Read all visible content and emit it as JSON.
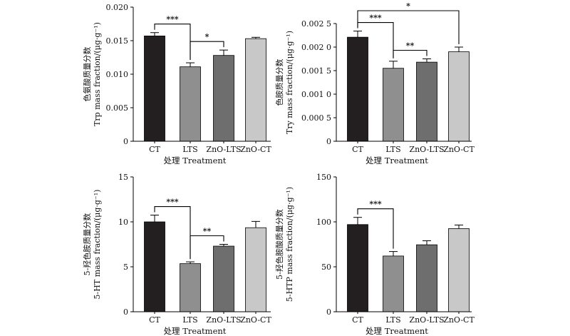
{
  "colors": {
    "CT": "#231f20",
    "LTS": "#8f8f8f",
    "ZnO-LTS": "#6e6e6e",
    "ZnO-CT": "#c8c8c8",
    "axis": "#000000"
  },
  "chart_data": [
    {
      "type": "bar",
      "categories": [
        "CT",
        "LTS",
        "ZnO-LTS",
        "ZnO-CT"
      ],
      "values": [
        0.0157,
        0.0111,
        0.0128,
        0.0153
      ],
      "errors": [
        0.0005,
        0.0006,
        0.0008,
        0.0002
      ],
      "ylim": [
        0,
        0.02
      ],
      "yticks": [
        "0",
        "0.005",
        "0.010",
        "0.015",
        "0.020"
      ],
      "ylabel_cn": "色氨酸质量分数",
      "ylabel_en": "Trp mass fraction/(μg·g⁻¹)",
      "xlabel": "处理 Treatment",
      "significance": [
        {
          "from": "CT",
          "to": "LTS",
          "label": "***"
        },
        {
          "from": "LTS",
          "to": "ZnO-LTS",
          "label": "*"
        }
      ]
    },
    {
      "type": "bar",
      "categories": [
        "CT",
        "LTS",
        "ZnO-LTS",
        "ZnO-CT"
      ],
      "values": [
        0.00221,
        0.00155,
        0.00168,
        0.0019
      ],
      "errors": [
        0.00013,
        0.00015,
        7e-05,
        0.0001
      ],
      "ylim": [
        0,
        0.0025
      ],
      "yticks": [
        "0",
        "0.000 5",
        "0.001 0",
        "0.001 5",
        "0.002 0",
        "0.002 5"
      ],
      "ylabel_cn": "色胺质量分数",
      "ylabel_en": "Try mass fraction/(μg·g⁻¹)",
      "xlabel": "处理 Treatment",
      "significance": [
        {
          "from": "CT",
          "to": "LTS",
          "label": "***"
        },
        {
          "from": "LTS",
          "to": "ZnO-LTS",
          "label": "**"
        },
        {
          "from": "CT",
          "to": "ZnO-CT",
          "label": "*"
        }
      ]
    },
    {
      "type": "bar",
      "categories": [
        "CT",
        "LTS",
        "ZnO-LTS",
        "ZnO-CT"
      ],
      "values": [
        10.0,
        5.35,
        7.3,
        9.35
      ],
      "errors": [
        0.75,
        0.2,
        0.2,
        0.7
      ],
      "ylim": [
        0,
        15
      ],
      "yticks": [
        "0",
        "5",
        "10",
        "15"
      ],
      "ylabel_cn": "5-羟色胺质量分数",
      "ylabel_en": "5-HT mass fraction/(μg·g⁻¹)",
      "xlabel": "处理 Treatment",
      "significance": [
        {
          "from": "CT",
          "to": "LTS",
          "label": "***"
        },
        {
          "from": "LTS",
          "to": "ZnO-LTS",
          "label": "**"
        }
      ]
    },
    {
      "type": "bar",
      "categories": [
        "CT",
        "LTS",
        "ZnO-LTS",
        "ZnO-CT"
      ],
      "values": [
        97,
        62,
        74.5,
        92.5
      ],
      "errors": [
        8,
        5,
        4.5,
        4
      ],
      "ylim": [
        0,
        150
      ],
      "yticks": [
        "0",
        "50",
        "100",
        "150"
      ],
      "ylabel_cn": "5-羟色胺酸质量分数",
      "ylabel_en": "5-HTP mass fraction/(μg·g⁻¹)",
      "xlabel": "处理 Treatment",
      "significance": [
        {
          "from": "CT",
          "to": "LTS",
          "label": "***"
        }
      ]
    }
  ]
}
